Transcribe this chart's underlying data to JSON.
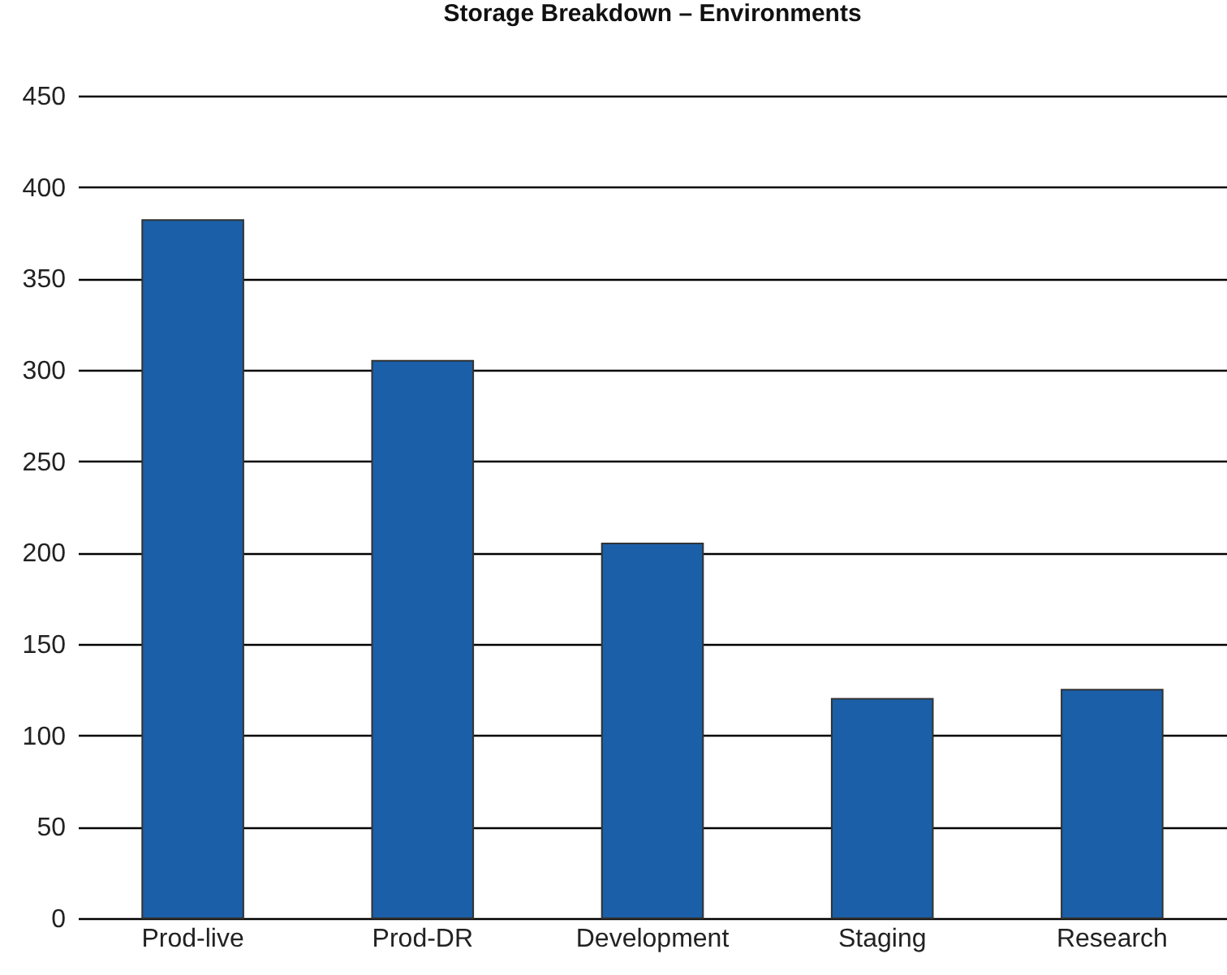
{
  "chart_data": {
    "type": "bar",
    "title": "Storage Breakdown – Environments",
    "categories": [
      "Prod-live",
      "Prod-DR",
      "Development",
      "Staging",
      "Research"
    ],
    "values": [
      382,
      305,
      205,
      120,
      125
    ],
    "color": "#1a5fa8",
    "ylim": [
      0,
      450
    ],
    "yticks": [
      0,
      50,
      100,
      150,
      200,
      250,
      300,
      350,
      400,
      450
    ],
    "grid": "y"
  }
}
